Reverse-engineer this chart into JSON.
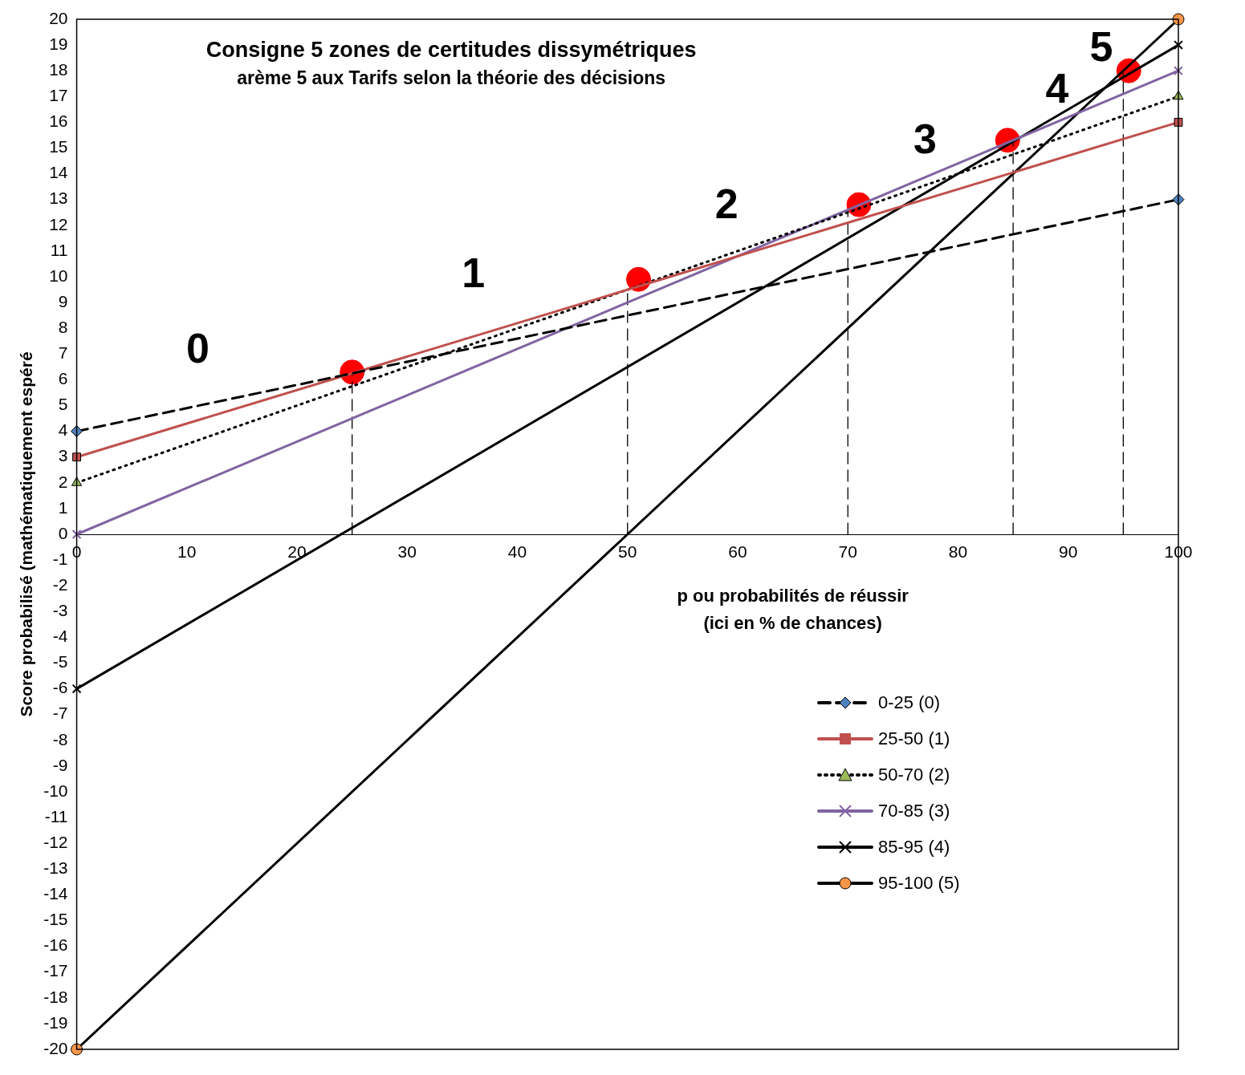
{
  "chart_data": {
    "type": "line",
    "title": "Consigne 5 zones de certitudes dissymétriques",
    "subtitle": "arème 5 aux Tarifs selon la théorie des décisions",
    "xlabel": "p ou probabilités de réussir\n(ici en % de chances)",
    "ylabel": "Score probabilisé (mathématiquement espéré",
    "x": [
      0,
      100
    ],
    "xlim": [
      0,
      100
    ],
    "xticks": [
      0,
      10,
      20,
      30,
      40,
      50,
      60,
      70,
      80,
      90,
      100
    ],
    "ylim": [
      -20,
      20
    ],
    "yticks": [
      -20,
      -19,
      -18,
      -17,
      -16,
      -15,
      -14,
      -13,
      -12,
      -11,
      -10,
      -9,
      -8,
      -7,
      -6,
      -5,
      -4,
      -3,
      -2,
      -1,
      0,
      1,
      2,
      3,
      4,
      5,
      6,
      7,
      8,
      9,
      10,
      11,
      12,
      13,
      14,
      15,
      16,
      17,
      18,
      19,
      20
    ],
    "grid": false,
    "legend": "bottom right",
    "series": [
      {
        "name": "0-25 (0)",
        "color": "#000000",
        "colors": [
          "#4f81bd",
          "#4f81bd"
        ],
        "marker": "diamond",
        "line_style": "dashed",
        "values": [
          4,
          13
        ]
      },
      {
        "name": "25-50 (1)",
        "color": "#c0504d",
        "colors": [
          "#c0504d",
          "#c0504d"
        ],
        "marker": "square",
        "line_style": "solid",
        "values": [
          3,
          16
        ]
      },
      {
        "name": "50-70 (2)",
        "color": "#000000",
        "colors": [
          "#9bbb59",
          "#9bbb59"
        ],
        "marker": "triangle",
        "line_style": "dotted",
        "values": [
          2,
          17
        ]
      },
      {
        "name": "70-85 (3)",
        "color": "#8064a2",
        "colors": [
          "#8064a2",
          "#8064a2"
        ],
        "marker": "cross",
        "line_style": "solid",
        "values": [
          0,
          18
        ]
      },
      {
        "name": "85-95 (4)",
        "color": "#000000",
        "colors": [
          "#000000",
          "#000000"
        ],
        "marker": "cross",
        "line_style": "solid",
        "values": [
          -6,
          19
        ]
      },
      {
        "name": "95-100 (5)",
        "color": "#000000",
        "colors": [
          "#f79646",
          "#f79646"
        ],
        "marker": "circle",
        "line_style": "solid",
        "values": [
          -20,
          20
        ]
      },
      {
        "type": "line",
        "color": "#000000",
        "marker": "none",
        "line_style": "dashed",
        "x": [
          25,
          25
        ],
        "values": [
          0,
          6.2
        ]
      },
      {
        "type": "line",
        "color": "#000000",
        "marker": "none",
        "line_style": "dashed",
        "x": [
          50,
          50
        ],
        "values": [
          0,
          9.5
        ]
      },
      {
        "type": "line",
        "color": "#000000",
        "marker": "none",
        "line_style": "dashed",
        "x": [
          70,
          70
        ],
        "values": [
          0,
          12.6
        ]
      },
      {
        "type": "line",
        "color": "#000000",
        "marker": "none",
        "line_style": "dashed",
        "x": [
          85,
          85
        ],
        "values": [
          0,
          15.2
        ]
      },
      {
        "type": "line",
        "color": "#000000",
        "marker": "none",
        "line_style": "dashed",
        "x": [
          95,
          95
        ],
        "values": [
          0,
          17.9
        ]
      },
      {
        "type": "scatter",
        "color": "#ff0000",
        "marker": "circle",
        "x": [
          25,
          51,
          71,
          84.5,
          95.5
        ],
        "values": [
          6.3,
          9.9,
          12.8,
          15.3,
          18
        ]
      }
    ],
    "annotations": [
      "0",
      "1",
      "2",
      "3",
      "4",
      "5"
    ]
  }
}
